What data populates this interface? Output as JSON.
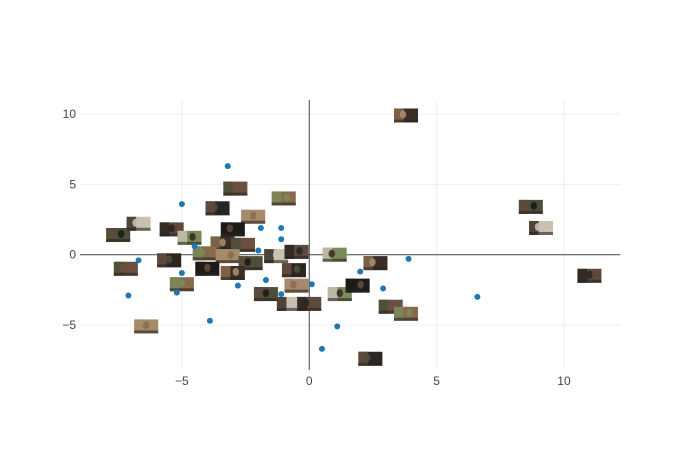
{
  "chart_data": {
    "type": "scatter",
    "title": "",
    "xlabel": "",
    "ylabel": "",
    "xlim": [
      -9,
      12.2
    ],
    "ylim": [
      -8.2,
      11
    ],
    "grid": true,
    "x_ticks": [
      -5,
      0,
      5,
      10
    ],
    "y_ticks": [
      -5,
      0,
      5,
      10
    ],
    "x_tick_labels": [
      "−5",
      "0",
      "5",
      "10"
    ],
    "y_tick_labels": [
      "−5",
      "0",
      "5",
      "10"
    ],
    "marker_color": "#1f77b4",
    "points": [
      {
        "x": -3.2,
        "y": 6.3
      },
      {
        "x": -5.0,
        "y": 3.6
      },
      {
        "x": -1.9,
        "y": 1.9
      },
      {
        "x": -1.1,
        "y": 1.9
      },
      {
        "x": -1.1,
        "y": 1.1
      },
      {
        "x": -4.5,
        "y": 0.6
      },
      {
        "x": -2.0,
        "y": 0.3
      },
      {
        "x": -6.7,
        "y": -0.4
      },
      {
        "x": -5.0,
        "y": -1.3
      },
      {
        "x": -1.7,
        "y": -1.8
      },
      {
        "x": -2.8,
        "y": -2.2
      },
      {
        "x": -7.1,
        "y": -2.9
      },
      {
        "x": -5.2,
        "y": -2.7
      },
      {
        "x": -3.9,
        "y": -4.7
      },
      {
        "x": -1.1,
        "y": -2.8
      },
      {
        "x": 0.1,
        "y": -2.1
      },
      {
        "x": 2.0,
        "y": -1.2
      },
      {
        "x": 2.9,
        "y": -2.4
      },
      {
        "x": 3.9,
        "y": -0.3
      },
      {
        "x": 1.1,
        "y": -5.1
      },
      {
        "x": 0.5,
        "y": -6.7
      },
      {
        "x": 6.6,
        "y": -3.0
      }
    ],
    "image_markers": [
      {
        "x": 3.8,
        "y": 9.9
      },
      {
        "x": -2.9,
        "y": 4.7
      },
      {
        "x": -1.0,
        "y": 4.0
      },
      {
        "x": -3.6,
        "y": 3.3
      },
      {
        "x": -2.2,
        "y": 2.7
      },
      {
        "x": -7.5,
        "y": 1.4
      },
      {
        "x": -6.7,
        "y": 2.2
      },
      {
        "x": -5.4,
        "y": 1.8
      },
      {
        "x": -4.7,
        "y": 1.2
      },
      {
        "x": -3.0,
        "y": 1.8
      },
      {
        "x": -3.4,
        "y": 0.8
      },
      {
        "x": -2.6,
        "y": 0.7
      },
      {
        "x": -4.1,
        "y": 0.1
      },
      {
        "x": -5.5,
        "y": -0.4
      },
      {
        "x": -3.2,
        "y": -0.1
      },
      {
        "x": -2.3,
        "y": -0.6
      },
      {
        "x": -1.3,
        "y": -0.1
      },
      {
        "x": -0.5,
        "y": 0.2
      },
      {
        "x": 1.0,
        "y": 0.0
      },
      {
        "x": -4.0,
        "y": -1.0
      },
      {
        "x": -3.0,
        "y": -1.3
      },
      {
        "x": -7.2,
        "y": -1.0
      },
      {
        "x": -5.0,
        "y": -2.1
      },
      {
        "x": -0.6,
        "y": -1.1
      },
      {
        "x": -0.5,
        "y": -2.2
      },
      {
        "x": -1.7,
        "y": -2.8
      },
      {
        "x": -0.8,
        "y": -3.5
      },
      {
        "x": 0.0,
        "y": -3.5
      },
      {
        "x": 1.2,
        "y": -2.8
      },
      {
        "x": 1.9,
        "y": -2.2
      },
      {
        "x": 2.6,
        "y": -0.6
      },
      {
        "x": 3.2,
        "y": -3.7
      },
      {
        "x": 3.8,
        "y": -4.2
      },
      {
        "x": 2.4,
        "y": -7.4
      },
      {
        "x": -6.4,
        "y": -5.1
      },
      {
        "x": 8.7,
        "y": 3.4
      },
      {
        "x": 9.1,
        "y": 1.9
      },
      {
        "x": 11.0,
        "y": -1.5
      }
    ]
  },
  "colors": {
    "background": "#ffffff",
    "grid": "#eeeeee",
    "zeroline": "#444444",
    "tick_text": "#444444",
    "marker": "#1f77b4",
    "thumbnail_palette": [
      "#3a2e26",
      "#6b5040",
      "#8a6a4e",
      "#2b2622",
      "#a58b6c",
      "#4b4f3a",
      "#c9c0b0",
      "#5e4a3c",
      "#7a8a5a",
      "#1e1b18"
    ]
  }
}
